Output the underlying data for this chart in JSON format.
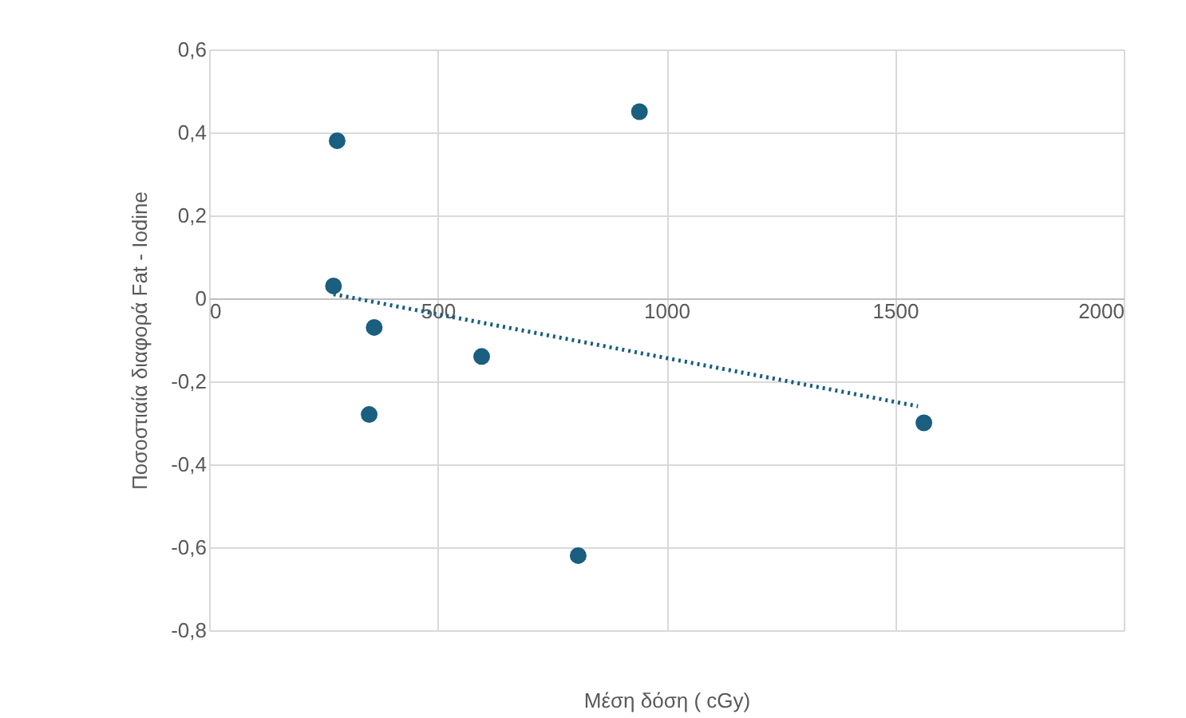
{
  "chart_data": {
    "type": "scatter",
    "xlabel": "Μέση δόση ( cGy)",
    "ylabel": "Ποσοστιαία διαφορά    Fat - Iodine",
    "xlim": [
      0,
      2000
    ],
    "xticks": [
      0,
      500,
      1000,
      1500,
      2000
    ],
    "ylim": [
      -0.8,
      0.6
    ],
    "yticks": [
      {
        "value": -0.8,
        "label": "-0,8"
      },
      {
        "value": -0.6,
        "label": "-0,6"
      },
      {
        "value": -0.4,
        "label": "-0,4"
      },
      {
        "value": -0.2,
        "label": "-0,2"
      },
      {
        "value": 0,
        "label": "0"
      },
      {
        "value": 0.2,
        "label": "0,2"
      },
      {
        "value": 0.4,
        "label": "0,4"
      },
      {
        "value": 0.6,
        "label": "0,6"
      }
    ],
    "grid": true,
    "marker": "circle",
    "series": [
      {
        "color": "#1a5e80",
        "x": [
          280,
          272,
          361,
          350,
          596,
          807,
          941,
          1563
        ],
        "values": [
          0.38,
          0.03,
          -0.07,
          -0.28,
          -0.14,
          -0.62,
          0.45,
          -0.3
        ]
      },
      {
        "type": "line",
        "color": "#1a5e80",
        "line_style": "dotted",
        "marker": "none",
        "x": [
          272,
          1550
        ],
        "values": [
          0.01,
          -0.26
        ]
      }
    ]
  }
}
